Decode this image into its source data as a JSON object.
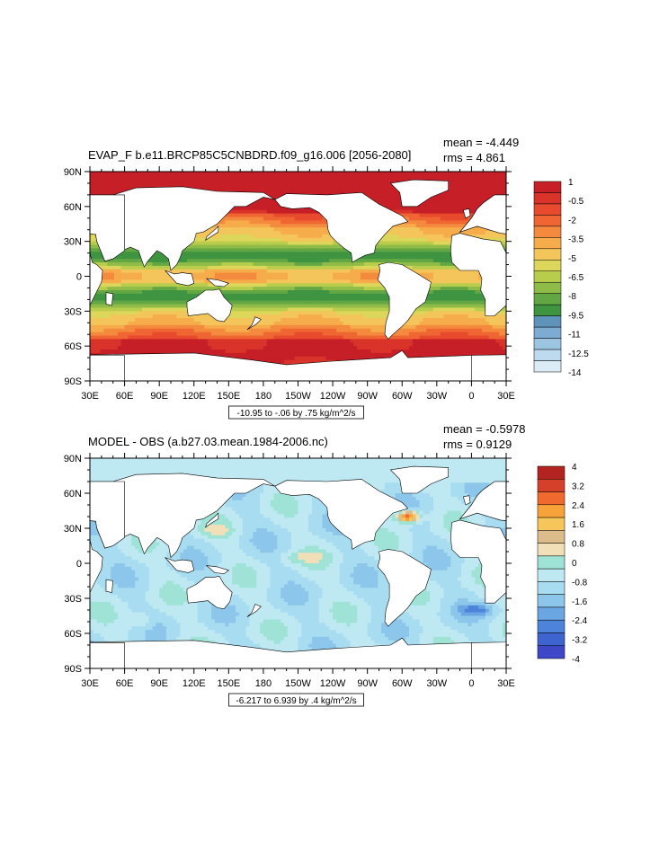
{
  "chart_data": [
    {
      "type": "heatmap",
      "title": "EVAP_F b.e11.BRCP85C5CNBDRD.f09_g16.006 [2056-2080]",
      "stats": {
        "mean": "mean = -4.449",
        "rms": "rms = 4.861"
      },
      "contour_info": "-10.95 to -.06 by .75 kg/m^2/s",
      "x_ticks": [
        "30E",
        "60E",
        "90E",
        "120E",
        "150E",
        "180",
        "150W",
        "120W",
        "90W",
        "60W",
        "30W",
        "0",
        "30E"
      ],
      "y_ticks": [
        "90N",
        "60N",
        "30N",
        "0",
        "30S",
        "60S",
        "90S"
      ],
      "xlim": [
        30,
        390
      ],
      "ylim": [
        -90,
        90
      ],
      "colorbar": {
        "labels": [
          "1",
          "-0.5",
          "-2",
          "-3.5",
          "-5",
          "-6.5",
          "-8",
          "-9.5",
          "-11",
          "-12.5",
          "-14"
        ],
        "colors": [
          "#c61f27",
          "#d9332a",
          "#e74a2c",
          "#ef6633",
          "#f48a3d",
          "#f7ac4b",
          "#f3c55a",
          "#dcd65a",
          "#b9cd4c",
          "#8fbb48",
          "#63a744",
          "#3f9441",
          "#5f93ba",
          "#7dabd2",
          "#9cc5e2",
          "#bedaee",
          "#dcecf6"
        ]
      },
      "regions": [
        {
          "band": "arctic",
          "value_range": [
            -0.5,
            1
          ]
        },
        {
          "band": "subtropical_gyres",
          "value_range": [
            -8,
            -6.5
          ]
        },
        {
          "band": "equatorial",
          "value_range": [
            -5,
            -3.5
          ]
        },
        {
          "band": "southern_ocean",
          "value_range": [
            -2,
            -0.5
          ]
        }
      ]
    },
    {
      "type": "heatmap",
      "title": "MODEL - OBS (a.b27.03.mean.1984-2006.nc)",
      "stats": {
        "mean": "mean = -0.5978",
        "rms": "rms = 0.9129"
      },
      "contour_info": "-6.217 to 6.939 by .4 kg/m^2/s",
      "x_ticks": [
        "30E",
        "60E",
        "90E",
        "120E",
        "150E",
        "180",
        "150W",
        "120W",
        "90W",
        "60W",
        "30W",
        "0",
        "30E"
      ],
      "y_ticks": [
        "90N",
        "60N",
        "30N",
        "0",
        "30S",
        "60S",
        "90S"
      ],
      "xlim": [
        30,
        390
      ],
      "ylim": [
        -90,
        90
      ],
      "colorbar": {
        "labels": [
          "4",
          "3.2",
          "2.4",
          "1.6",
          "0.8",
          "0",
          "-0.8",
          "-1.6",
          "-2.4",
          "-3.2",
          "-4"
        ],
        "colors": [
          "#b3231f",
          "#d5402a",
          "#ef6a2c",
          "#f8a23a",
          "#f6c65a",
          "#dcbc8a",
          "#f1dfb8",
          "#9fe3d6",
          "#bfe9f2",
          "#a8dcf0",
          "#8cc6ea",
          "#6aa7e2",
          "#4d84da",
          "#3d64cf",
          "#3d47c8"
        ]
      }
    }
  ]
}
